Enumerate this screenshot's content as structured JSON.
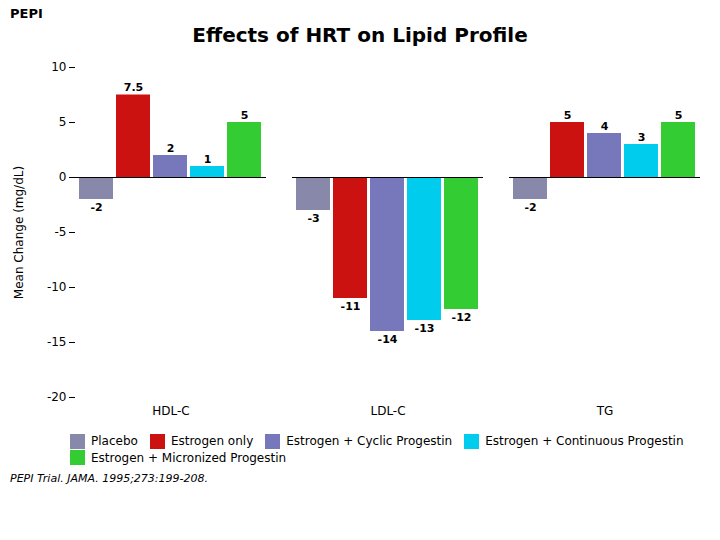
{
  "chart_data": {
    "type": "bar",
    "title": "Effects of HRT on Lipid Profile",
    "annotations": [
      "PEPI",
      "PEPI Trial. JAMA. 1995;273:199-208."
    ],
    "ylabel": "Mean Change (mg/dL)",
    "categories": [
      "HDL-C",
      "LDL-C",
      "TG"
    ],
    "series": [
      {
        "name": "Placebo",
        "color": "#8888aa",
        "values": [
          -2,
          -3,
          -2
        ]
      },
      {
        "name": "Estrogen only",
        "color": "#cc1111",
        "values": [
          7.5,
          -11,
          5
        ]
      },
      {
        "name": "Estrogen + Cyclic Progestin",
        "color": "#7777bb",
        "values": [
          2,
          -14,
          4
        ]
      },
      {
        "name": "Estrogen + Continuous Progestin",
        "color": "#00ccee",
        "values": [
          1,
          -13,
          3
        ]
      },
      {
        "name": "Estrogen + Micronized Progestin",
        "color": "#33cc33",
        "values": [
          5,
          -12,
          5
        ]
      }
    ],
    "ylim": [
      -20,
      10
    ],
    "yticks": [
      -20,
      -15,
      -10,
      -5,
      0,
      5,
      10
    ],
    "grid": false,
    "legend": "bottom",
    "data_labels": true
  }
}
